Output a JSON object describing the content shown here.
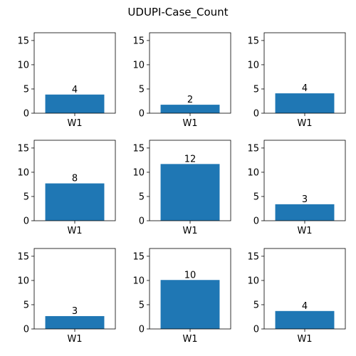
{
  "chart_data": {
    "type": "bar",
    "title": "UDUPI-Case_Count",
    "layout": {
      "rows": 3,
      "cols": 3
    },
    "bar_color": "#1f77b4",
    "ylim": [
      0,
      16.6
    ],
    "yticks": [
      0,
      5,
      10,
      15
    ],
    "panels": [
      {
        "categories": [
          "W1"
        ],
        "values": [
          3.85
        ],
        "bar_labels": [
          "4"
        ]
      },
      {
        "categories": [
          "W1"
        ],
        "values": [
          1.75
        ],
        "bar_labels": [
          "2"
        ]
      },
      {
        "categories": [
          "W1"
        ],
        "values": [
          4.1
        ],
        "bar_labels": [
          "4"
        ]
      },
      {
        "categories": [
          "W1"
        ],
        "values": [
          7.7
        ],
        "bar_labels": [
          "8"
        ]
      },
      {
        "categories": [
          "W1"
        ],
        "values": [
          11.7
        ],
        "bar_labels": [
          "12"
        ]
      },
      {
        "categories": [
          "W1"
        ],
        "values": [
          3.4
        ],
        "bar_labels": [
          "3"
        ]
      },
      {
        "categories": [
          "W1"
        ],
        "values": [
          2.65
        ],
        "bar_labels": [
          "3"
        ]
      },
      {
        "categories": [
          "W1"
        ],
        "values": [
          10.1
        ],
        "bar_labels": [
          "10"
        ]
      },
      {
        "categories": [
          "W1"
        ],
        "values": [
          3.7
        ],
        "bar_labels": [
          "4"
        ]
      }
    ]
  }
}
